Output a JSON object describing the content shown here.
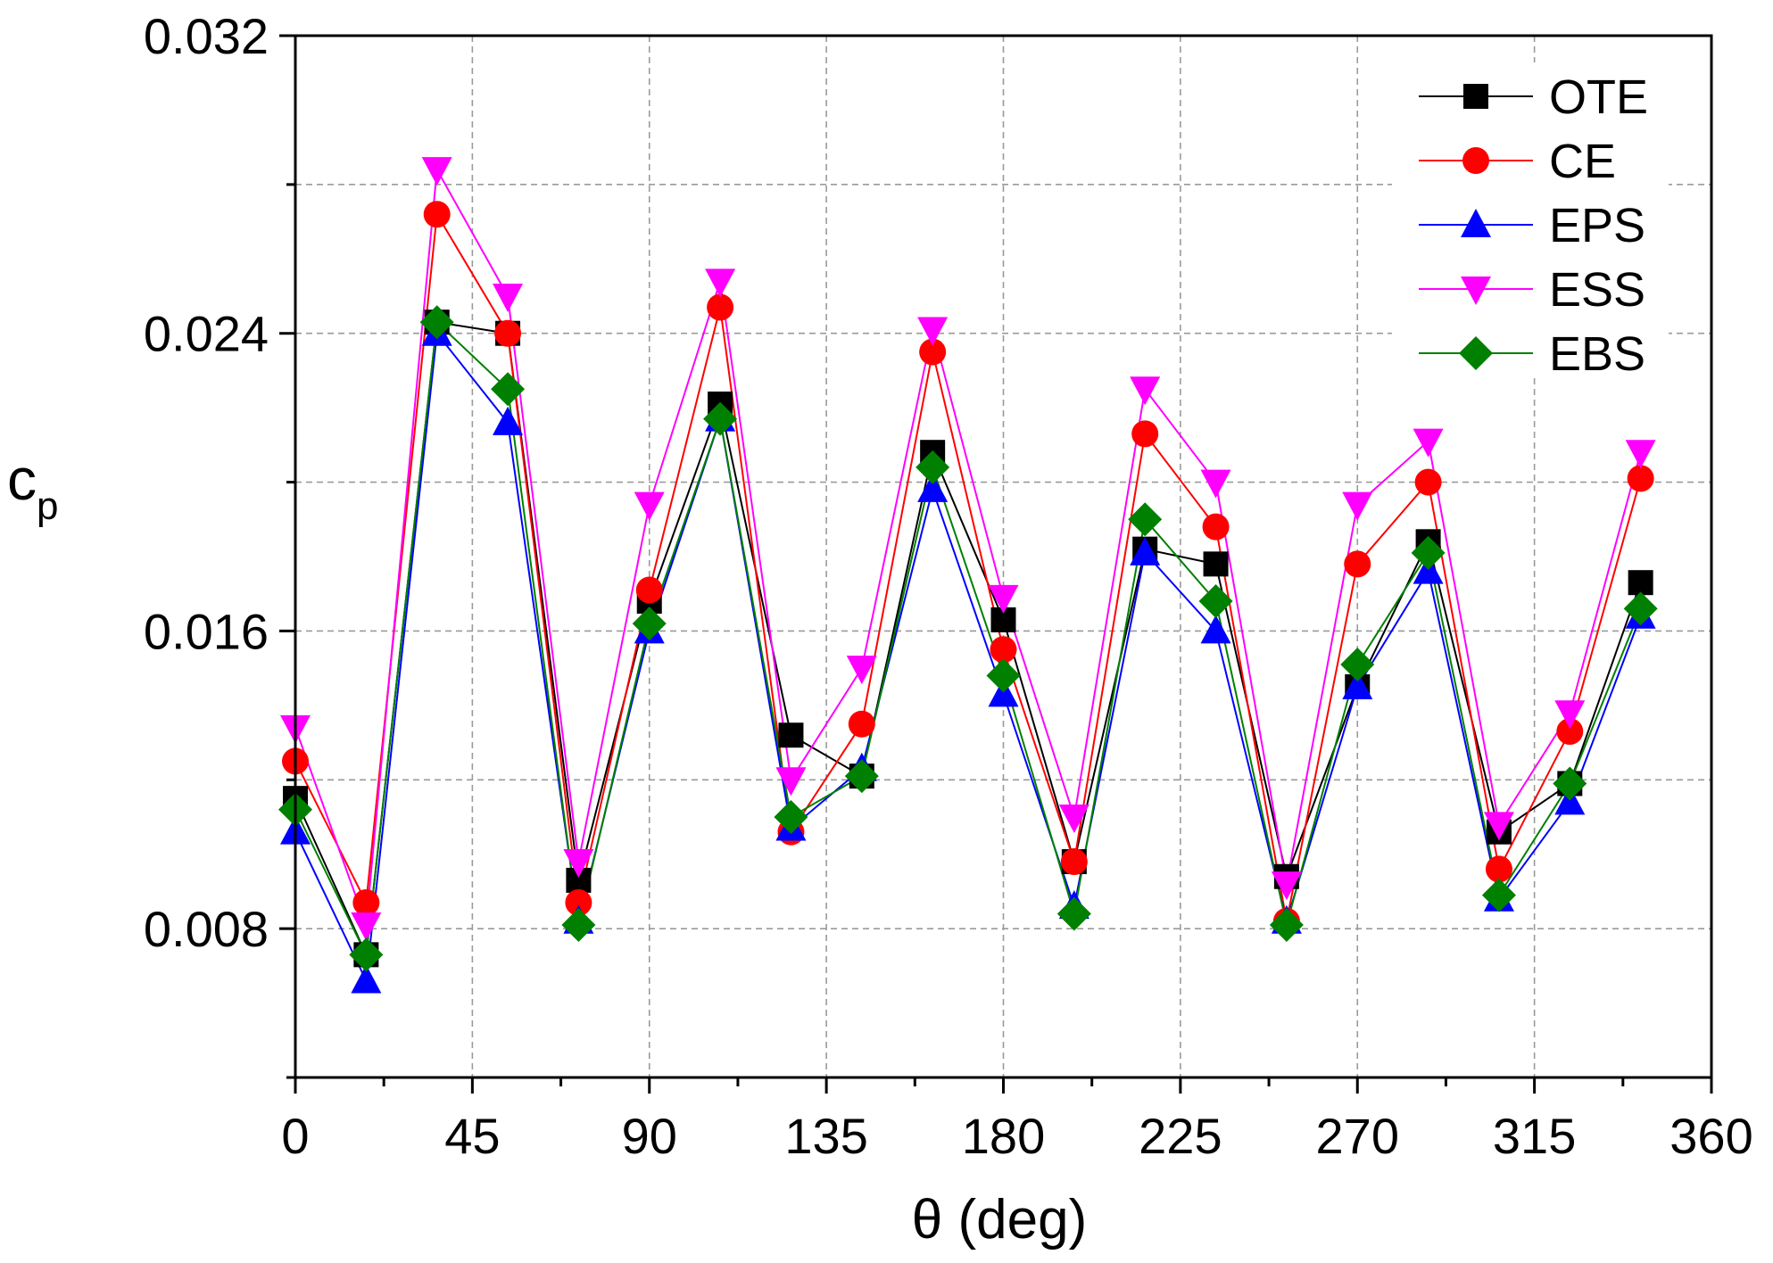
{
  "chart_data": {
    "type": "line",
    "title": "",
    "xlabel": "θ (deg)",
    "ylabel_main": "c",
    "ylabel_sub": "p",
    "xlim": [
      0,
      360
    ],
    "ylim": [
      0.004,
      0.032
    ],
    "xticks": [
      0,
      45,
      90,
      135,
      180,
      225,
      270,
      315,
      360
    ],
    "xtick_labels": [
      "0",
      "45",
      "90",
      "135",
      "180",
      "225",
      "270",
      "315",
      "360"
    ],
    "yticks": [
      0.008,
      0.016,
      0.024,
      0.032
    ],
    "ytick_labels": [
      "0.008",
      "0.016",
      "0.024",
      "0.032"
    ],
    "grid": true,
    "legend_position": "top-right",
    "x": [
      0,
      18,
      36,
      54,
      72,
      90,
      108,
      126,
      144,
      162,
      180,
      198,
      216,
      234,
      252,
      270,
      288,
      306,
      324,
      342
    ],
    "series": [
      {
        "name": "OTE",
        "color": "#000000",
        "marker": "square",
        "values": [
          0.0115,
          0.0073,
          0.0243,
          0.024,
          0.0093,
          0.0168,
          0.0221,
          0.0132,
          0.0121,
          0.0208,
          0.0163,
          0.0098,
          0.0182,
          0.0178,
          0.0094,
          0.0145,
          0.0184,
          0.0106,
          0.0119,
          0.0173
        ]
      },
      {
        "name": "CE",
        "color": "#ff0000",
        "marker": "circle",
        "values": [
          0.0125,
          0.0087,
          0.0272,
          0.024,
          0.0087,
          0.0171,
          0.0247,
          0.0106,
          0.0135,
          0.0235,
          0.0155,
          0.0098,
          0.0213,
          0.0188,
          0.0082,
          0.0178,
          0.02,
          0.0096,
          0.0133,
          0.0201
        ]
      },
      {
        "name": "EPS",
        "color": "#0000ff",
        "marker": "triangle-up",
        "values": [
          0.0106,
          0.0066,
          0.024,
          0.0216,
          0.0082,
          0.016,
          0.0217,
          0.0107,
          0.0123,
          0.0198,
          0.0143,
          0.0086,
          0.0181,
          0.016,
          0.0082,
          0.0145,
          0.0176,
          0.0088,
          0.0114,
          0.0164
        ]
      },
      {
        "name": "ESS",
        "color": "#ff00ff",
        "marker": "triangle-down",
        "values": [
          0.0134,
          0.0081,
          0.0284,
          0.025,
          0.0098,
          0.0194,
          0.0254,
          0.012,
          0.015,
          0.0241,
          0.0169,
          0.011,
          0.0225,
          0.02,
          0.0092,
          0.0194,
          0.0211,
          0.0108,
          0.0138,
          0.0208
        ]
      },
      {
        "name": "EBS",
        "color": "#008000",
        "marker": "diamond",
        "values": [
          0.0112,
          0.0073,
          0.0243,
          0.0225,
          0.0081,
          0.0162,
          0.0217,
          0.011,
          0.0121,
          0.0204,
          0.0148,
          0.0084,
          0.019,
          0.0168,
          0.0081,
          0.0151,
          0.0181,
          0.0089,
          0.0119,
          0.0166
        ]
      }
    ]
  }
}
